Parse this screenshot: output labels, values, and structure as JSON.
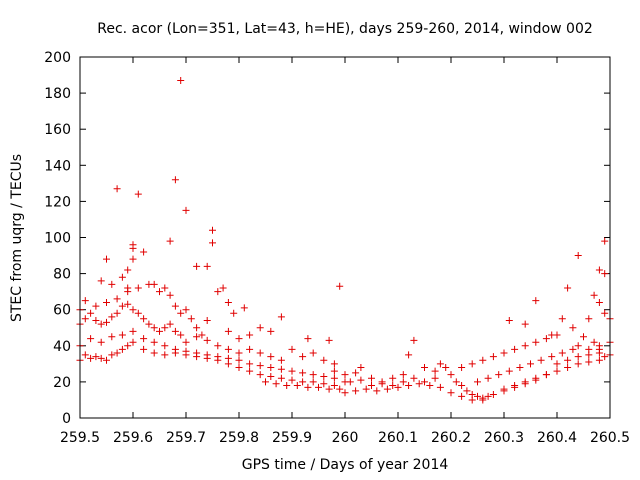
{
  "chart_data": {
    "type": "scatter",
    "title": "Rec. acor (Lon=351, Lat=43, h=HE), days 259-260, 2014, window 002",
    "xlabel": "GPS time / Days of year 2014",
    "ylabel": "STEC from uqrg / TECUs",
    "xlim": [
      259.5,
      260.5
    ],
    "ylim": [
      0,
      200
    ],
    "xticks": [
      259.5,
      259.6,
      259.7,
      259.8,
      259.9,
      260.0,
      260.1,
      260.2,
      260.3,
      260.4,
      260.5
    ],
    "xtick_labels": [
      "259.5",
      "259.6",
      "259.7",
      "259.8",
      "259.9",
      "260",
      "260.1",
      "260.2",
      "260.3",
      "260.4",
      "260.5"
    ],
    "yticks": [
      0,
      20,
      40,
      60,
      80,
      100,
      120,
      140,
      160,
      180,
      200
    ],
    "ytick_labels": [
      "0",
      "20",
      "40",
      "60",
      "80",
      "100",
      "120",
      "140",
      "160",
      "180",
      "200"
    ],
    "grid": false,
    "marker": "+",
    "color": "#e00000",
    "series": [
      {
        "points": [
          [
            259.5,
            32
          ],
          [
            259.51,
            35
          ],
          [
            259.52,
            33
          ],
          [
            259.53,
            34
          ],
          [
            259.54,
            33
          ],
          [
            259.55,
            32
          ],
          [
            259.56,
            35
          ],
          [
            259.57,
            36
          ],
          [
            259.58,
            38
          ],
          [
            259.59,
            40
          ],
          [
            259.6,
            42
          ],
          [
            259.62,
            38
          ],
          [
            259.64,
            36
          ],
          [
            259.66,
            35
          ],
          [
            259.68,
            36
          ],
          [
            259.7,
            35
          ],
          [
            259.72,
            34
          ],
          [
            259.74,
            33
          ],
          [
            259.76,
            32
          ],
          [
            259.78,
            30
          ],
          [
            259.5,
            40
          ],
          [
            259.52,
            44
          ],
          [
            259.54,
            42
          ],
          [
            259.56,
            45
          ],
          [
            259.58,
            46
          ],
          [
            259.6,
            48
          ],
          [
            259.62,
            44
          ],
          [
            259.64,
            42
          ],
          [
            259.66,
            40
          ],
          [
            259.68,
            38
          ],
          [
            259.7,
            37
          ],
          [
            259.72,
            36
          ],
          [
            259.74,
            35
          ],
          [
            259.76,
            34
          ],
          [
            259.78,
            33
          ],
          [
            259.8,
            32
          ],
          [
            259.5,
            52
          ],
          [
            259.51,
            55
          ],
          [
            259.52,
            58
          ],
          [
            259.53,
            54
          ],
          [
            259.54,
            52
          ],
          [
            259.55,
            53
          ],
          [
            259.56,
            56
          ],
          [
            259.57,
            58
          ],
          [
            259.58,
            62
          ],
          [
            259.59,
            63
          ],
          [
            259.6,
            60
          ],
          [
            259.61,
            58
          ],
          [
            259.62,
            55
          ],
          [
            259.63,
            52
          ],
          [
            259.64,
            50
          ],
          [
            259.65,
            48
          ],
          [
            259.66,
            50
          ],
          [
            259.67,
            52
          ],
          [
            259.68,
            48
          ],
          [
            259.69,
            46
          ],
          [
            259.5,
            60
          ],
          [
            259.51,
            65
          ],
          [
            259.53,
            62
          ],
          [
            259.55,
            64
          ],
          [
            259.57,
            66
          ],
          [
            259.59,
            70
          ],
          [
            259.61,
            72
          ],
          [
            259.63,
            74
          ],
          [
            259.65,
            70
          ],
          [
            259.67,
            68
          ],
          [
            259.54,
            76
          ],
          [
            259.56,
            74
          ],
          [
            259.58,
            78
          ],
          [
            259.59,
            82
          ],
          [
            259.6,
            88
          ],
          [
            259.6,
            94
          ],
          [
            259.6,
            96
          ],
          [
            259.62,
            92
          ],
          [
            259.55,
            88
          ],
          [
            259.59,
            72
          ],
          [
            259.57,
            127
          ],
          [
            259.61,
            124
          ],
          [
            259.68,
            132
          ],
          [
            259.69,
            187
          ],
          [
            259.7,
            115
          ],
          [
            259.67,
            98
          ],
          [
            259.72,
            84
          ],
          [
            259.74,
            84
          ],
          [
            259.75,
            104
          ],
          [
            259.75,
            97
          ],
          [
            259.64,
            74
          ],
          [
            259.66,
            72
          ],
          [
            259.68,
            62
          ],
          [
            259.69,
            58
          ],
          [
            259.7,
            60
          ],
          [
            259.71,
            55
          ],
          [
            259.72,
            50
          ],
          [
            259.73,
            46
          ],
          [
            259.74,
            54
          ],
          [
            259.76,
            70
          ],
          [
            259.77,
            72
          ],
          [
            259.78,
            64
          ],
          [
            259.79,
            58
          ],
          [
            259.81,
            61
          ],
          [
            259.78,
            48
          ],
          [
            259.8,
            44
          ],
          [
            259.82,
            46
          ],
          [
            259.84,
            50
          ],
          [
            259.86,
            48
          ],
          [
            259.88,
            56
          ],
          [
            259.7,
            42
          ],
          [
            259.72,
            45
          ],
          [
            259.74,
            43
          ],
          [
            259.76,
            40
          ],
          [
            259.78,
            38
          ],
          [
            259.8,
            36
          ],
          [
            259.82,
            38
          ],
          [
            259.84,
            36
          ],
          [
            259.86,
            34
          ],
          [
            259.88,
            32
          ],
          [
            259.8,
            28
          ],
          [
            259.82,
            26
          ],
          [
            259.84,
            24
          ],
          [
            259.86,
            23
          ],
          [
            259.88,
            22
          ],
          [
            259.9,
            21
          ],
          [
            259.92,
            20
          ],
          [
            259.94,
            20
          ],
          [
            259.96,
            19
          ],
          [
            259.98,
            18
          ],
          [
            259.82,
            30
          ],
          [
            259.84,
            29
          ],
          [
            259.86,
            28
          ],
          [
            259.88,
            27
          ],
          [
            259.9,
            26
          ],
          [
            259.92,
            25
          ],
          [
            259.94,
            24
          ],
          [
            259.96,
            23
          ],
          [
            259.98,
            22
          ],
          [
            260.0,
            20
          ],
          [
            259.85,
            20
          ],
          [
            259.87,
            19
          ],
          [
            259.89,
            18
          ],
          [
            259.91,
            18
          ],
          [
            259.93,
            17
          ],
          [
            259.95,
            17
          ],
          [
            259.97,
            16
          ],
          [
            259.99,
            16
          ],
          [
            259.9,
            38
          ],
          [
            259.92,
            34
          ],
          [
            259.93,
            44
          ],
          [
            259.94,
            36
          ],
          [
            259.96,
            32
          ],
          [
            259.97,
            43
          ],
          [
            259.98,
            30
          ],
          [
            259.99,
            73
          ],
          [
            259.98,
            26
          ],
          [
            260.0,
            24
          ],
          [
            260.02,
            25
          ],
          [
            260.03,
            28
          ],
          [
            260.05,
            22
          ],
          [
            260.07,
            20
          ],
          [
            260.09,
            18
          ],
          [
            260.11,
            20
          ],
          [
            260.13,
            22
          ],
          [
            260.15,
            20
          ],
          [
            260.17,
            22
          ],
          [
            260.0,
            14
          ],
          [
            260.02,
            15
          ],
          [
            260.04,
            16
          ],
          [
            260.06,
            15
          ],
          [
            260.08,
            16
          ],
          [
            260.1,
            17
          ],
          [
            260.12,
            18
          ],
          [
            260.14,
            19
          ],
          [
            260.16,
            18
          ],
          [
            260.18,
            17
          ],
          [
            260.01,
            20
          ],
          [
            260.03,
            21
          ],
          [
            260.05,
            18
          ],
          [
            260.07,
            19
          ],
          [
            260.09,
            22
          ],
          [
            260.11,
            24
          ],
          [
            260.12,
            35
          ],
          [
            260.13,
            43
          ],
          [
            260.15,
            28
          ],
          [
            260.17,
            26
          ],
          [
            260.18,
            30
          ],
          [
            260.19,
            28
          ],
          [
            260.2,
            24
          ],
          [
            260.21,
            20
          ],
          [
            260.22,
            18
          ],
          [
            260.23,
            15
          ],
          [
            260.24,
            13
          ],
          [
            260.25,
            12
          ],
          [
            260.26,
            11
          ],
          [
            260.27,
            12
          ],
          [
            260.2,
            14
          ],
          [
            260.22,
            12
          ],
          [
            260.24,
            10
          ],
          [
            260.26,
            10
          ],
          [
            260.28,
            13
          ],
          [
            260.3,
            15
          ],
          [
            260.32,
            17
          ],
          [
            260.34,
            19
          ],
          [
            260.36,
            21
          ],
          [
            260.38,
            24
          ],
          [
            260.22,
            28
          ],
          [
            260.24,
            30
          ],
          [
            260.26,
            32
          ],
          [
            260.28,
            34
          ],
          [
            260.3,
            36
          ],
          [
            260.32,
            38
          ],
          [
            260.34,
            40
          ],
          [
            260.36,
            42
          ],
          [
            260.38,
            44
          ],
          [
            260.4,
            46
          ],
          [
            260.25,
            20
          ],
          [
            260.27,
            22
          ],
          [
            260.29,
            24
          ],
          [
            260.31,
            26
          ],
          [
            260.33,
            28
          ],
          [
            260.35,
            30
          ],
          [
            260.37,
            32
          ],
          [
            260.39,
            34
          ],
          [
            260.41,
            36
          ],
          [
            260.43,
            38
          ],
          [
            260.3,
            16
          ],
          [
            260.32,
            18
          ],
          [
            260.34,
            20
          ],
          [
            260.36,
            22
          ],
          [
            260.38,
            24
          ],
          [
            260.4,
            26
          ],
          [
            260.42,
            28
          ],
          [
            260.44,
            30
          ],
          [
            260.46,
            31
          ],
          [
            260.48,
            32
          ],
          [
            260.31,
            54
          ],
          [
            260.34,
            52
          ],
          [
            260.36,
            65
          ],
          [
            260.39,
            46
          ],
          [
            260.41,
            55
          ],
          [
            260.42,
            72
          ],
          [
            260.43,
            50
          ],
          [
            260.44,
            90
          ],
          [
            260.45,
            45
          ],
          [
            260.46,
            55
          ],
          [
            260.47,
            68
          ],
          [
            260.48,
            64
          ],
          [
            260.48,
            82
          ],
          [
            260.49,
            98
          ],
          [
            260.49,
            80
          ],
          [
            260.49,
            58
          ],
          [
            260.5,
            55
          ],
          [
            260.47,
            42
          ],
          [
            260.48,
            38
          ],
          [
            260.49,
            34
          ],
          [
            260.4,
            30
          ],
          [
            260.42,
            32
          ],
          [
            260.44,
            34
          ],
          [
            260.46,
            35
          ],
          [
            260.48,
            36
          ],
          [
            260.5,
            35
          ],
          [
            260.44,
            40
          ],
          [
            260.46,
            38
          ],
          [
            260.48,
            40
          ],
          [
            260.5,
            42
          ]
        ]
      }
    ]
  }
}
